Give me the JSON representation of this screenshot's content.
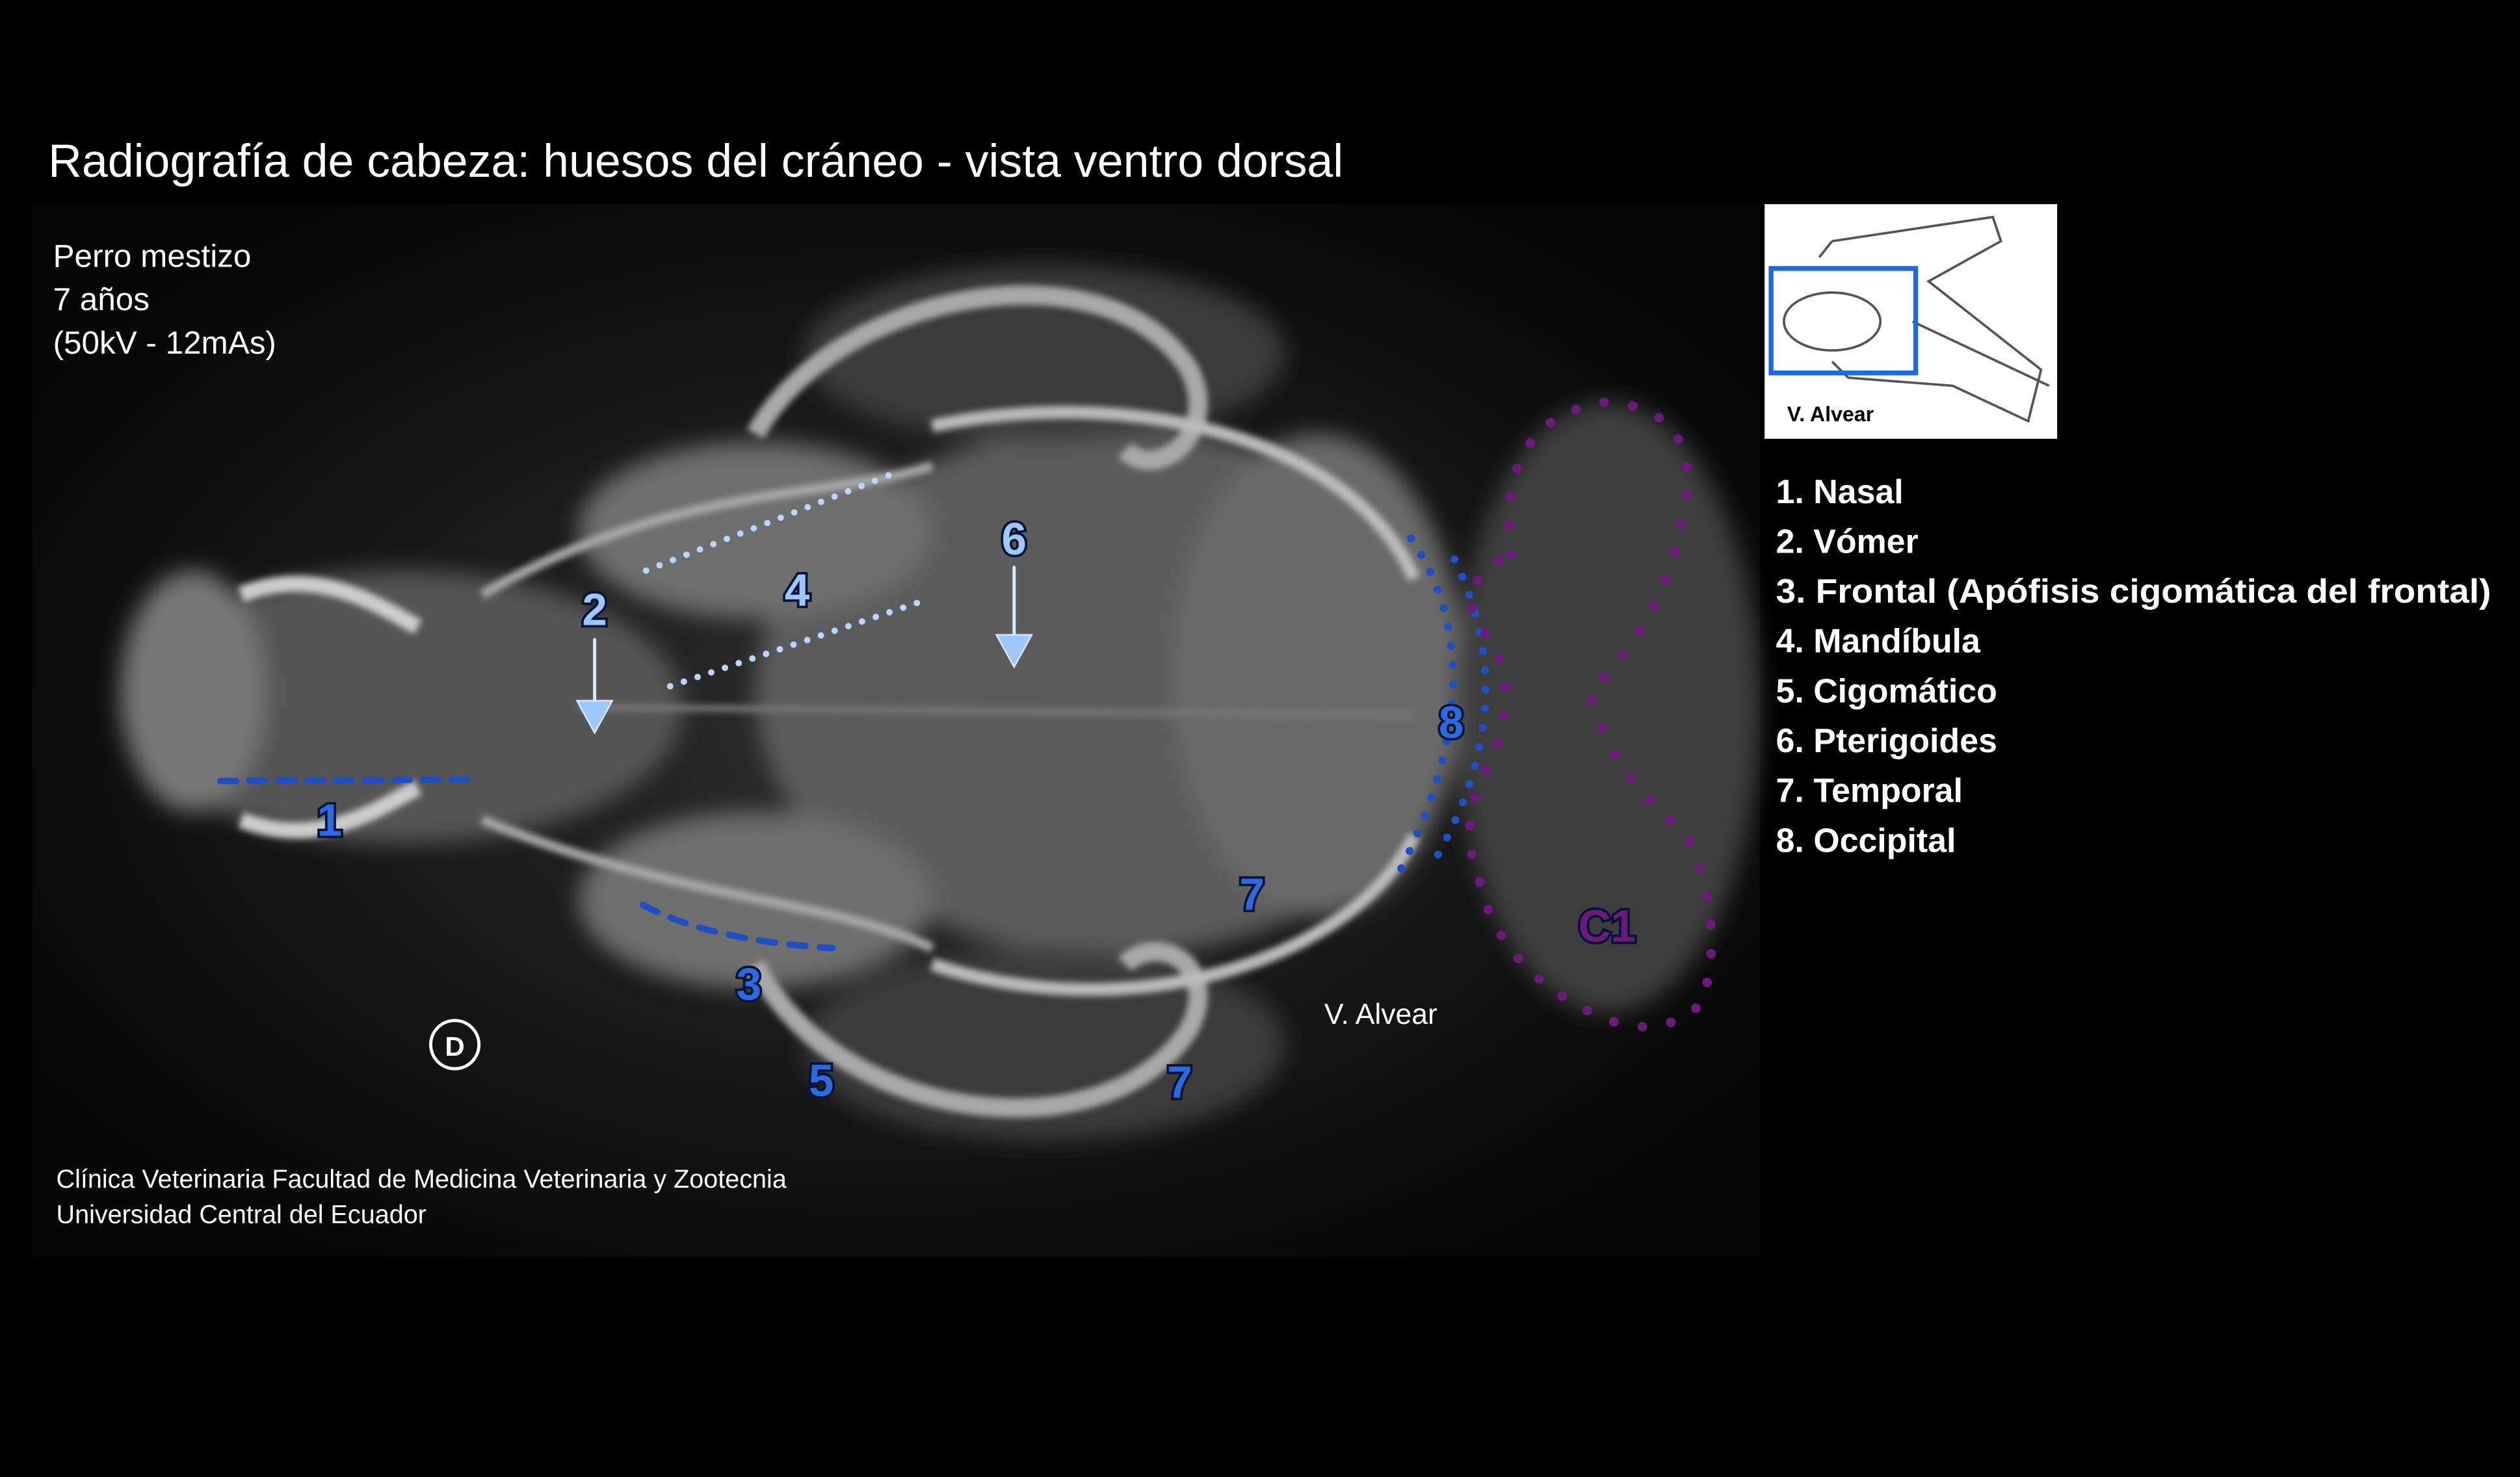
{
  "header": {
    "title": "Radiografía de cabeza: huesos del cráneo - vista ventro dorsal"
  },
  "patient": {
    "lines": [
      "Perro mestizo",
      "7 años",
      "(50kV - 12mAs)"
    ]
  },
  "thumbnail": {
    "label": "V. Alvear"
  },
  "legend": {
    "items": [
      "1. Nasal",
      "2. Vómer",
      "3. Frontal (Apófisis cigomática del frontal)",
      "4. Mandíbula",
      "5. Cigomático",
      "6. Pterigoides",
      "7. Temporal",
      "8. Occipital"
    ]
  },
  "image": {
    "markers": [
      "1",
      "2",
      "3",
      "4",
      "5",
      "6",
      "7",
      "7",
      "8",
      "C1",
      "D"
    ],
    "watermark": "V. Alvear"
  },
  "credit": {
    "lines": [
      "Clínica Veterinaria Facultad de Medicina Veterinaria y Zootecnia",
      "Universidad Central del Ecuador"
    ]
  }
}
